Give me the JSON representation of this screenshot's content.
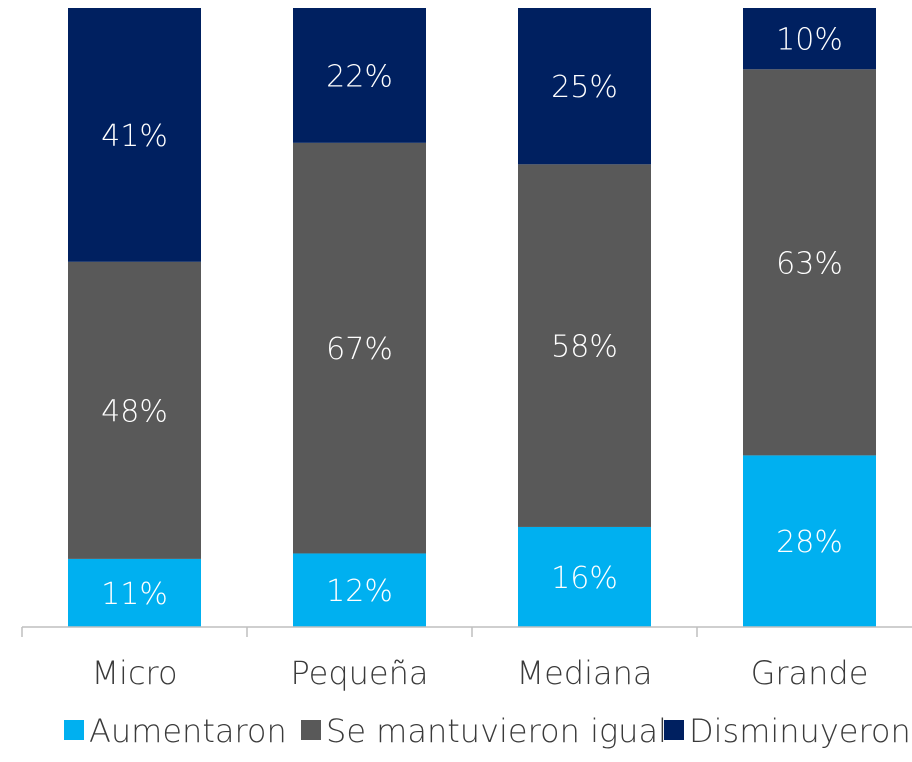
{
  "chart_data": {
    "type": "bar",
    "stacked": true,
    "normalized": true,
    "categories": [
      "Micro",
      "Pequeña",
      "Mediana",
      "Grande"
    ],
    "series": [
      {
        "name": "Aumentaron",
        "values": [
          11,
          12,
          16,
          28
        ],
        "color": "#00b0f0"
      },
      {
        "name": "Se mantuvieron igual",
        "values": [
          48,
          67,
          58,
          63
        ],
        "color": "#595959"
      },
      {
        "name": "Disminuyeron",
        "values": [
          41,
          22,
          25,
          10
        ],
        "color": "#002060"
      }
    ],
    "value_suffix": "%",
    "ylim": [
      0,
      100
    ],
    "grid": false,
    "legend_position": "bottom"
  }
}
